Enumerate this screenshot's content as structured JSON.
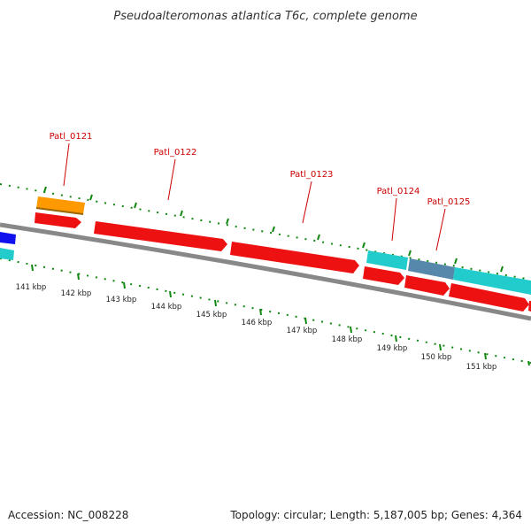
{
  "title": "Pseudoalteromonas atlantica T6c, complete genome",
  "footer": {
    "accession": "Accession: NC_008228",
    "stats": "Topology: circular; Length: 5,187,005 bp; Genes: 4,364"
  },
  "scale_labels": [
    "141 kbp",
    "142 kbp",
    "143 kbp",
    "144 kbp",
    "145 kbp",
    "146 kbp",
    "147 kbp",
    "148 kbp",
    "149 kbp",
    "150 kbp",
    "151 kbp"
  ],
  "gene_labels": [
    "Patl_0121",
    "Patl_0122",
    "Patl_0123",
    "Patl_0124",
    "Patl_0125"
  ],
  "colors": {
    "cds": "#ee1111",
    "rrna_orange": "#ff9900",
    "trna_cyan": "#22cccc",
    "rna_blue": "#1111ee",
    "steel": "#5588aa",
    "backbone": "#888888",
    "ticks": "#118811",
    "label": "#cc0000"
  }
}
